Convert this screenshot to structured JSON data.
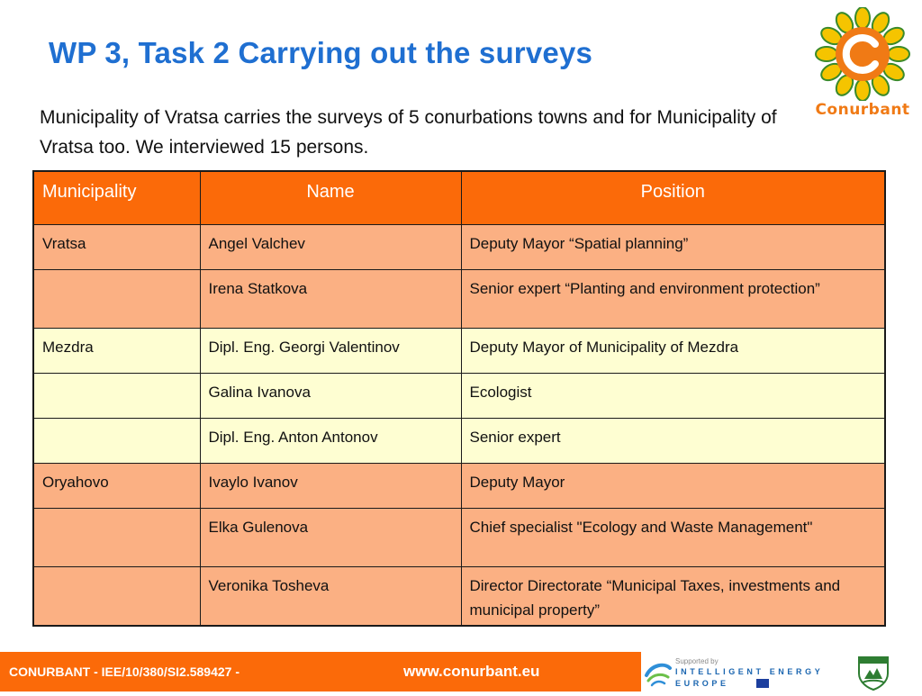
{
  "slide": {
    "title": "WP 3, Task 2 Carrying out the surveys",
    "intro": "Municipality of Vratsa carries the surveys of 5 conurbations towns and for Municipality of Vratsa too. We interviewed 15 persons."
  },
  "logo": {
    "word": "Conurbant",
    "icon": "sun-flower-logo",
    "color": "#f07a15"
  },
  "table": {
    "headers": [
      "Municipality",
      "Name",
      "Position"
    ],
    "rows": [
      {
        "municipality": "Vratsa",
        "name": "Angel Valchev",
        "position": "Deputy Mayor “Spatial planning”"
      },
      {
        "municipality": "",
        "name": "Irena Statkova",
        "position": "Senior expert “Planting and environment protection”"
      },
      {
        "municipality": "Mezdra",
        "name": "Dipl. Eng. Georgi Valentinov",
        "position": "Deputy Mayor of Municipality of Mezdra"
      },
      {
        "municipality": "",
        "name": "Galina Ivanova",
        "position": "Ecologist"
      },
      {
        "municipality": "",
        "name": "Dipl. Eng. Anton Antonov",
        "position": "Senior expert"
      },
      {
        "municipality": "Oryahovo",
        "name": "Ivaylo Ivanov",
        "position": "Deputy Mayor"
      },
      {
        "municipality": "",
        "name": "Elka Gulenova",
        "position": "Chief specialist \"Ecology and Waste Management\""
      },
      {
        "municipality": "",
        "name": "Veronika Tosheva",
        "position": "Director Directorate “Municipal Taxes, investments and municipal property”"
      }
    ]
  },
  "footer": {
    "project_code": "CONURBANT - IEE/10/380/SI2.589427 -",
    "url": "www.conurbant.eu",
    "iee_supported": "Supported by",
    "iee_line1": "INTELLIGENT ENERGY",
    "iee_line2": "EUROPE"
  },
  "colors": {
    "accent": "#fb6a09",
    "title": "#1f6fd1",
    "row_orange": "#fbb083",
    "row_yellow": "#fefed2"
  }
}
